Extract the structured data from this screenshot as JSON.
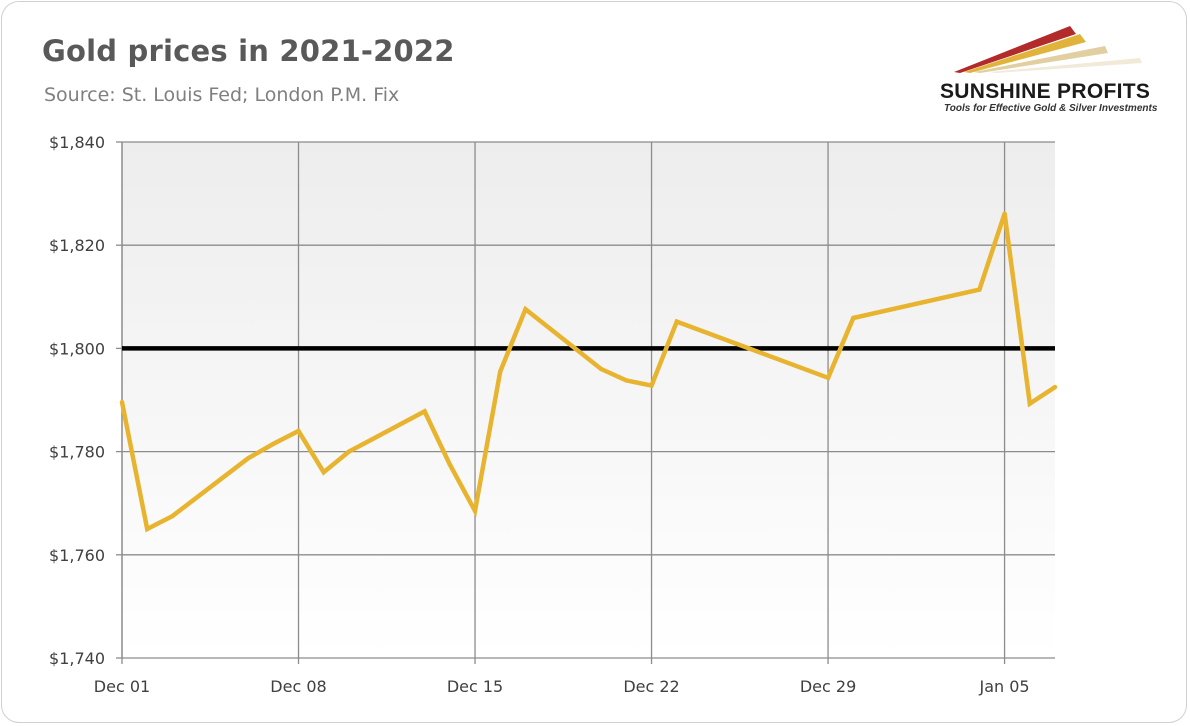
{
  "header": {
    "title": "Gold prices in 2021-2022",
    "subtitle": "Source: St. Louis Fed; London P.M. Fix"
  },
  "logo": {
    "name": "SUNSHINE PROFITS",
    "tagline": "Tools for Effective Gold & Silver Investments",
    "colors": [
      "#b22a2a",
      "#e0b43a",
      "#d9c28a"
    ]
  },
  "colors": {
    "series": "#e8b42f",
    "reference_line": "#000000",
    "grid": "#8c8c8c",
    "plot_bg_top": "#efefef",
    "plot_bg_bottom": "#ffffff"
  },
  "chart_data": {
    "type": "line",
    "title": "Gold prices in 2021-2022",
    "subtitle": "Source: St. Louis Fed; London P.M. Fix",
    "xlabel": "",
    "ylabel": "",
    "xlim": [
      "2021-12-01",
      "2022-01-07"
    ],
    "ylim": [
      1740,
      1840
    ],
    "x_ticks": [
      "Dec 01",
      "Dec 08",
      "Dec 15",
      "Dec 22",
      "Dec 29",
      "Jan 05"
    ],
    "x_tick_dates": [
      "2021-12-01",
      "2021-12-08",
      "2021-12-15",
      "2021-12-22",
      "2021-12-29",
      "2022-01-05"
    ],
    "y_ticks": [
      "$1,740",
      "$1,760",
      "$1,780",
      "$1,800",
      "$1,820",
      "$1,840"
    ],
    "y_tick_values": [
      1740,
      1760,
      1780,
      1800,
      1820,
      1840
    ],
    "grid": true,
    "reference_line": {
      "y": 1800
    },
    "series": [
      {
        "x": [
          "2021-12-01",
          "2021-12-02",
          "2021-12-03",
          "2021-12-06",
          "2021-12-07",
          "2021-12-08",
          "2021-12-09",
          "2021-12-10",
          "2021-12-13",
          "2021-12-14",
          "2021-12-15",
          "2021-12-16",
          "2021-12-17",
          "2021-12-20",
          "2021-12-21",
          "2021-12-22",
          "2021-12-23",
          "2021-12-29",
          "2021-12-30",
          "2022-01-04",
          "2022-01-05",
          "2022-01-06",
          "2022-01-07"
        ],
        "values": [
          1789.6,
          1765.0,
          1767.5,
          1778.7,
          1781.5,
          1784.0,
          1776.0,
          1780.0,
          1787.8,
          1777.5,
          1768.5,
          1795.5,
          1807.6,
          1796.0,
          1793.8,
          1792.8,
          1805.2,
          1794.3,
          1805.9,
          1811.4,
          1826.1,
          1789.3,
          1792.5
        ]
      }
    ]
  }
}
